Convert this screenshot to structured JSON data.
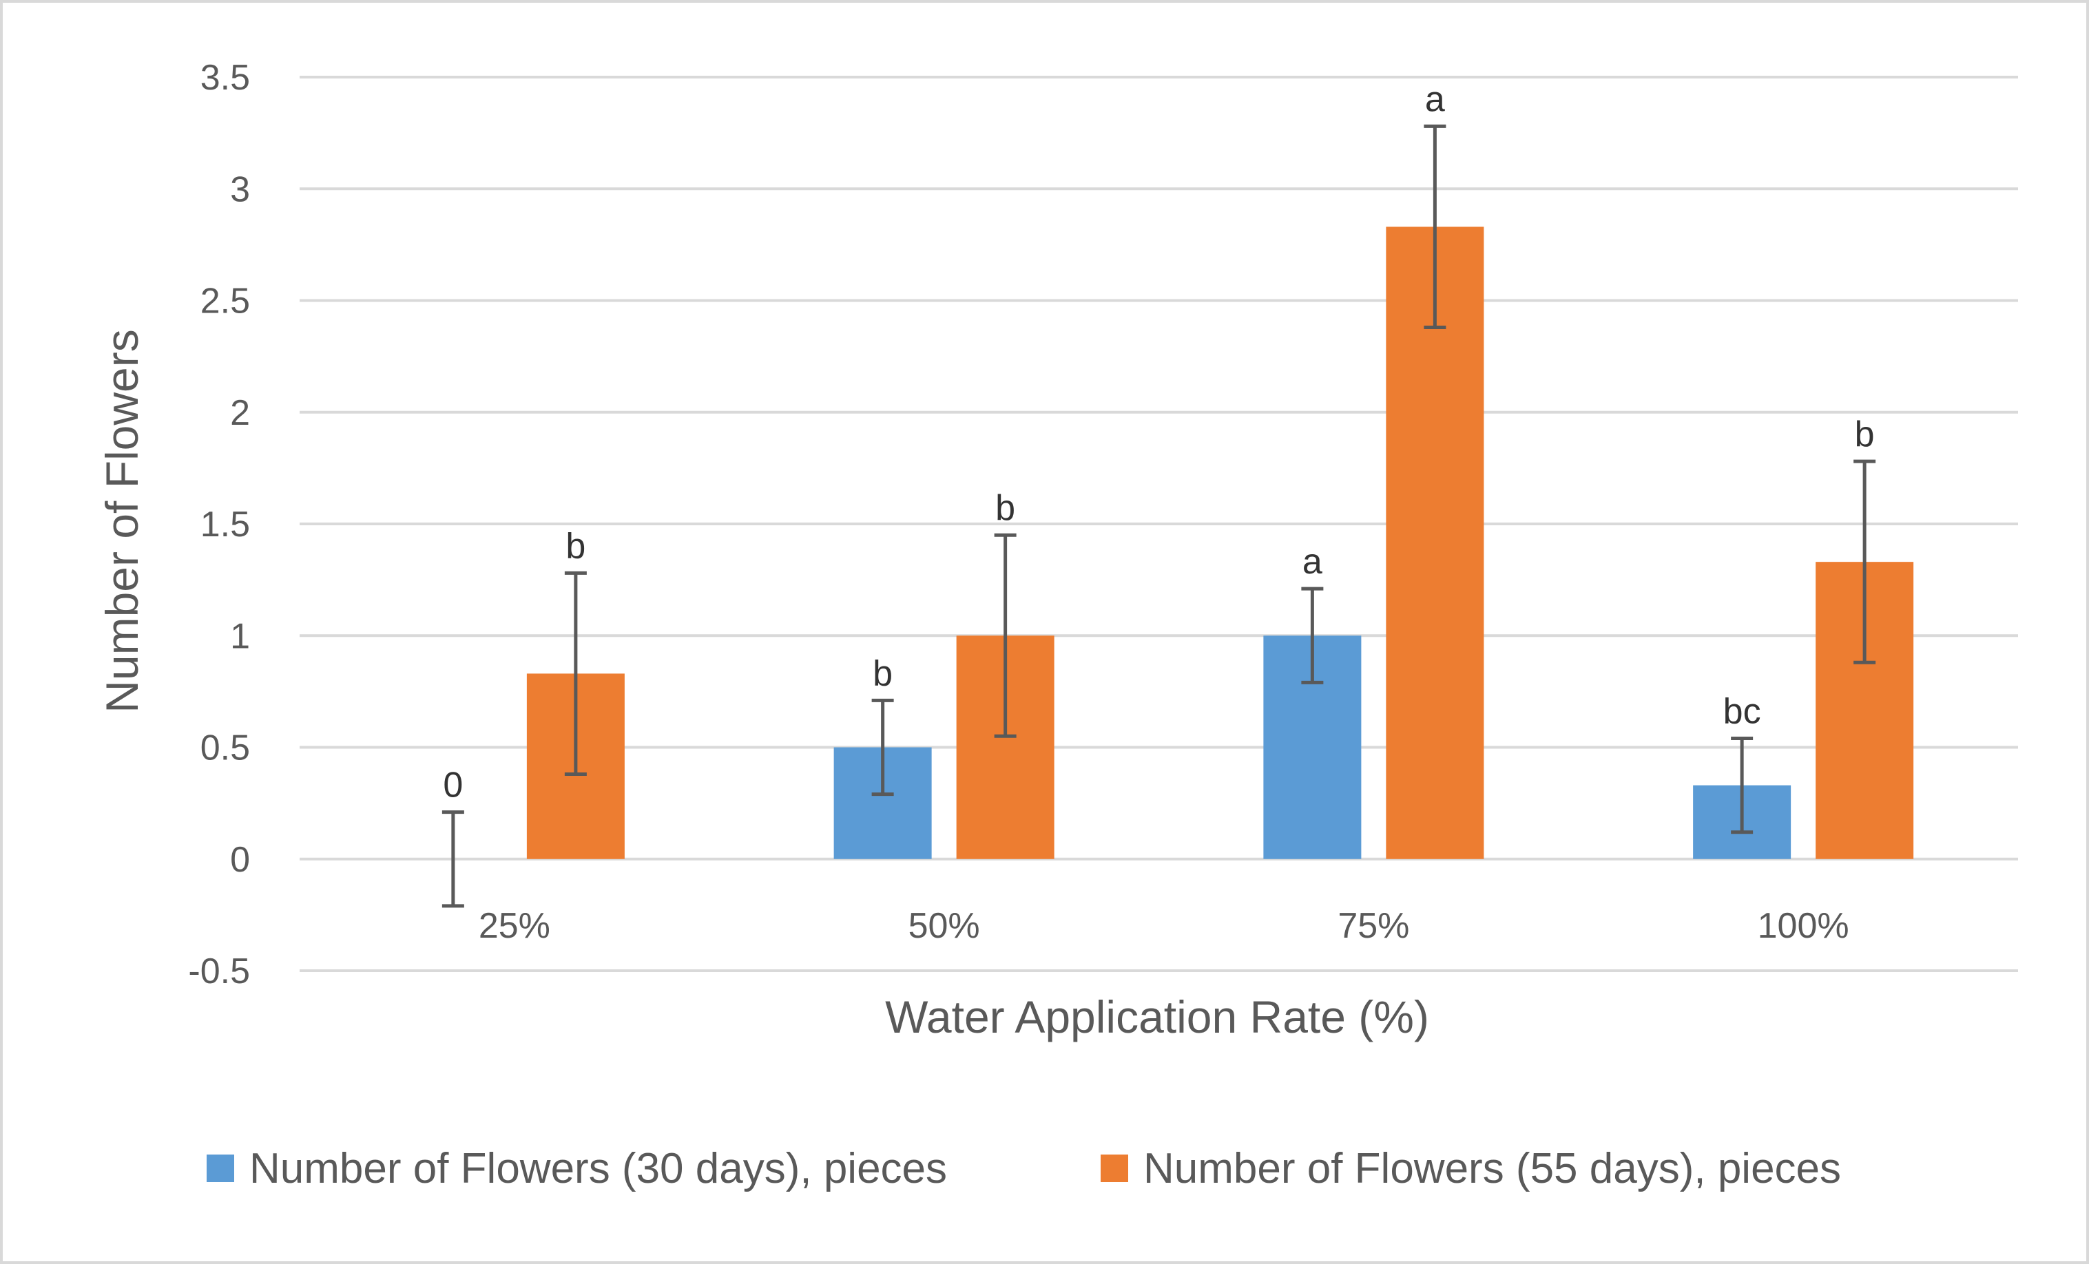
{
  "chart_data": {
    "type": "bar",
    "title": "",
    "xlabel": "Water Application Rate (%)",
    "ylabel": "Number of Flowers",
    "ylim": [
      -0.5,
      3.5
    ],
    "yticks": [
      -0.5,
      0,
      0.5,
      1,
      1.5,
      2,
      2.5,
      3,
      3.5
    ],
    "ytick_labels": [
      "-0.5",
      "0",
      "0.5",
      "1",
      "1.5",
      "2",
      "2.5",
      "3",
      "3.5"
    ],
    "grid": true,
    "legend_position": "bottom",
    "categories": [
      "25%",
      "50%",
      "75%",
      "100%"
    ],
    "series": [
      {
        "name": "Number of Flowers (30 days), pieces",
        "color": "#5b9bd5",
        "values": [
          0,
          0.5,
          1,
          0.33
        ],
        "errors": [
          0.21,
          0.21,
          0.21,
          0.21
        ],
        "labels": [
          "0",
          "b",
          "a",
          "bc"
        ]
      },
      {
        "name": "Number of Flowers (55 days), pieces",
        "color": "#ed7d31",
        "values": [
          0.83,
          1,
          2.83,
          1.33
        ],
        "errors": [
          0.45,
          0.45,
          0.45,
          0.45
        ],
        "labels": [
          "b",
          "b",
          "a",
          "b"
        ]
      }
    ]
  }
}
